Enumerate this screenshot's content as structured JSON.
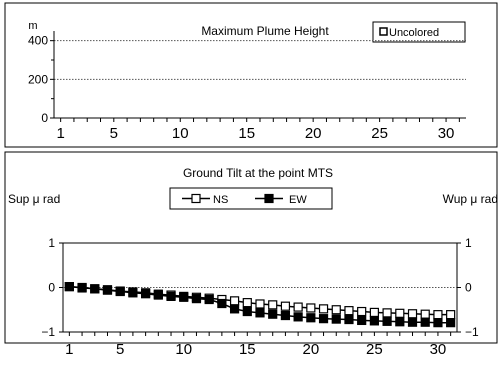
{
  "chart_data": [
    {
      "type": "bar",
      "title": "Maximum Plume Height",
      "ylabel": "m",
      "xlabel": "",
      "ylim": [
        0,
        450
      ],
      "yticks": [
        0,
        200,
        400
      ],
      "xticks": [
        1,
        5,
        10,
        15,
        20,
        25,
        30
      ],
      "xlim": [
        0.5,
        31.5
      ],
      "grid": "horizontal dotted",
      "legend_position": "top-right",
      "series": [
        {
          "name": "Uncolored",
          "values": []
        }
      ]
    },
    {
      "type": "line",
      "title": "Ground Tilt at the point MTS",
      "ylabel_left": "Sup μ rad",
      "ylabel_right": "Wup μ rad",
      "xlabel": "",
      "ylim": [
        -1,
        1
      ],
      "yticks": [
        -1,
        0,
        1
      ],
      "xticks": [
        1,
        5,
        10,
        15,
        20,
        25,
        30
      ],
      "xlim": [
        0.5,
        31.5
      ],
      "legend_position": "top-center",
      "x": [
        1,
        2,
        3,
        4,
        5,
        6,
        7,
        8,
        9,
        10,
        11,
        12,
        13,
        14,
        15,
        16,
        17,
        18,
        19,
        20,
        21,
        22,
        23,
        24,
        25,
        26,
        27,
        28,
        29,
        30,
        31
      ],
      "series": [
        {
          "name": "NS",
          "marker": "open-square",
          "values": [
            0.02,
            0.0,
            -0.03,
            -0.05,
            -0.08,
            -0.1,
            -0.12,
            -0.15,
            -0.17,
            -0.2,
            -0.22,
            -0.24,
            -0.27,
            -0.3,
            -0.34,
            -0.37,
            -0.39,
            -0.42,
            -0.44,
            -0.46,
            -0.48,
            -0.5,
            -0.52,
            -0.54,
            -0.56,
            -0.57,
            -0.58,
            -0.59,
            -0.6,
            -0.61,
            -0.61
          ]
        },
        {
          "name": "EW",
          "marker": "filled-square",
          "values": [
            0.02,
            -0.01,
            -0.03,
            -0.06,
            -0.09,
            -0.12,
            -0.14,
            -0.17,
            -0.2,
            -0.22,
            -0.25,
            -0.27,
            -0.36,
            -0.48,
            -0.54,
            -0.57,
            -0.6,
            -0.63,
            -0.66,
            -0.68,
            -0.7,
            -0.71,
            -0.72,
            -0.74,
            -0.75,
            -0.76,
            -0.77,
            -0.78,
            -0.78,
            -0.79,
            -0.79
          ]
        }
      ]
    }
  ],
  "colors": {
    "border": "#000000",
    "grid": "#555555",
    "open_marker_fill": "#ffffff",
    "filled_marker": "#000000"
  }
}
